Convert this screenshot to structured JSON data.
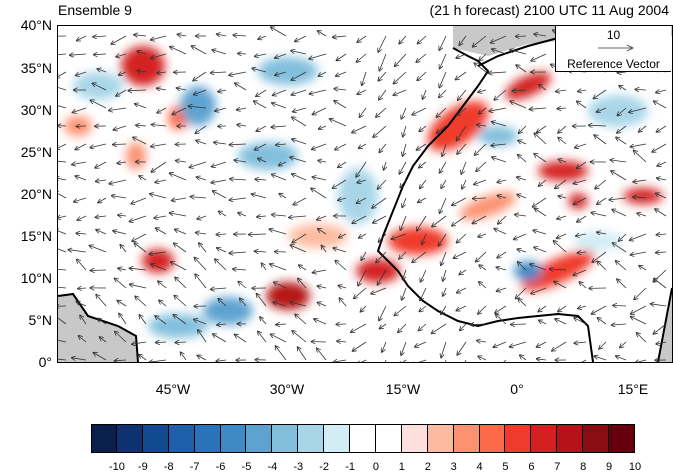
{
  "title_left": "Ensemble 9",
  "title_right": "(21 h forecast) 2100 UTC 11 Aug 2004",
  "lat_labels": [
    "40°N",
    "35°N",
    "30°N",
    "25°N",
    "20°N",
    "15°N",
    "10°N",
    "5°N",
    "0°"
  ],
  "lon_labels": [
    "45°W",
    "30°W",
    "15°W",
    "0°",
    "15°E"
  ],
  "reference_vector": {
    "magnitude": "10",
    "label": "Reference Vector"
  },
  "colorbar": {
    "labels": [
      "-10",
      "-9",
      "-8",
      "-7",
      "-6",
      "-5",
      "-4",
      "-3",
      "-2",
      "-1",
      "0",
      "1",
      "2",
      "3",
      "4",
      "5",
      "6",
      "7",
      "8",
      "9",
      "10"
    ],
    "colors": [
      "#0b1f4d",
      "#0e3270",
      "#124a8f",
      "#1d5fa8",
      "#2a73b8",
      "#3f8ac4",
      "#5ea3d0",
      "#82bfdd",
      "#a8d6e8",
      "#d3edf6",
      "#ffffff",
      "#ffffff",
      "#fde0dd",
      "#fcbba1",
      "#fc9272",
      "#fb6a4a",
      "#ef3b2c",
      "#d42020",
      "#b51219",
      "#8b0d14",
      "#67000d"
    ]
  },
  "map_colors": {
    "land_gray": "#c8c8c8",
    "coast": "#000000",
    "arrow": "#333333"
  }
}
